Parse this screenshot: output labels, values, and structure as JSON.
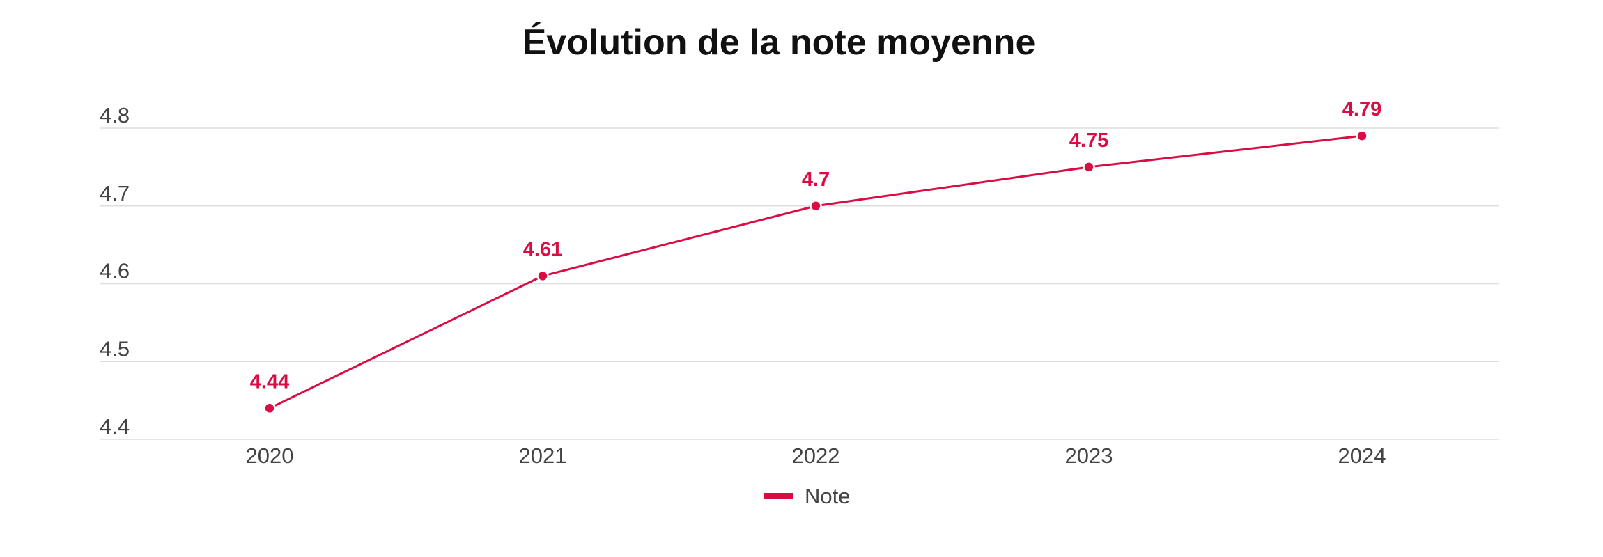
{
  "chart_data": {
    "type": "line",
    "title": "Évolution de la note moyenne",
    "xlabel": "",
    "ylabel": "",
    "categories": [
      "2020",
      "2021",
      "2022",
      "2023",
      "2024"
    ],
    "series": [
      {
        "name": "Note",
        "color": "#d90d43",
        "values": [
          4.44,
          4.61,
          4.7,
          4.75,
          4.79
        ],
        "labels": [
          "4.44",
          "4.61",
          "4.7",
          "4.75",
          "4.79"
        ]
      }
    ],
    "ylim": [
      4.4,
      4.8
    ],
    "yticks": [
      "4.4",
      "4.5",
      "4.6",
      "4.7",
      "4.8"
    ],
    "ytick_values": [
      4.4,
      4.5,
      4.6,
      4.7,
      4.8
    ],
    "grid": true,
    "legend": {
      "position": "bottom-center",
      "entries": [
        "Note"
      ]
    },
    "data_labels": true
  },
  "colors": {
    "series": "#d90d43",
    "grid": "#dedede",
    "axis_text": "#444444",
    "title": "#111111"
  }
}
